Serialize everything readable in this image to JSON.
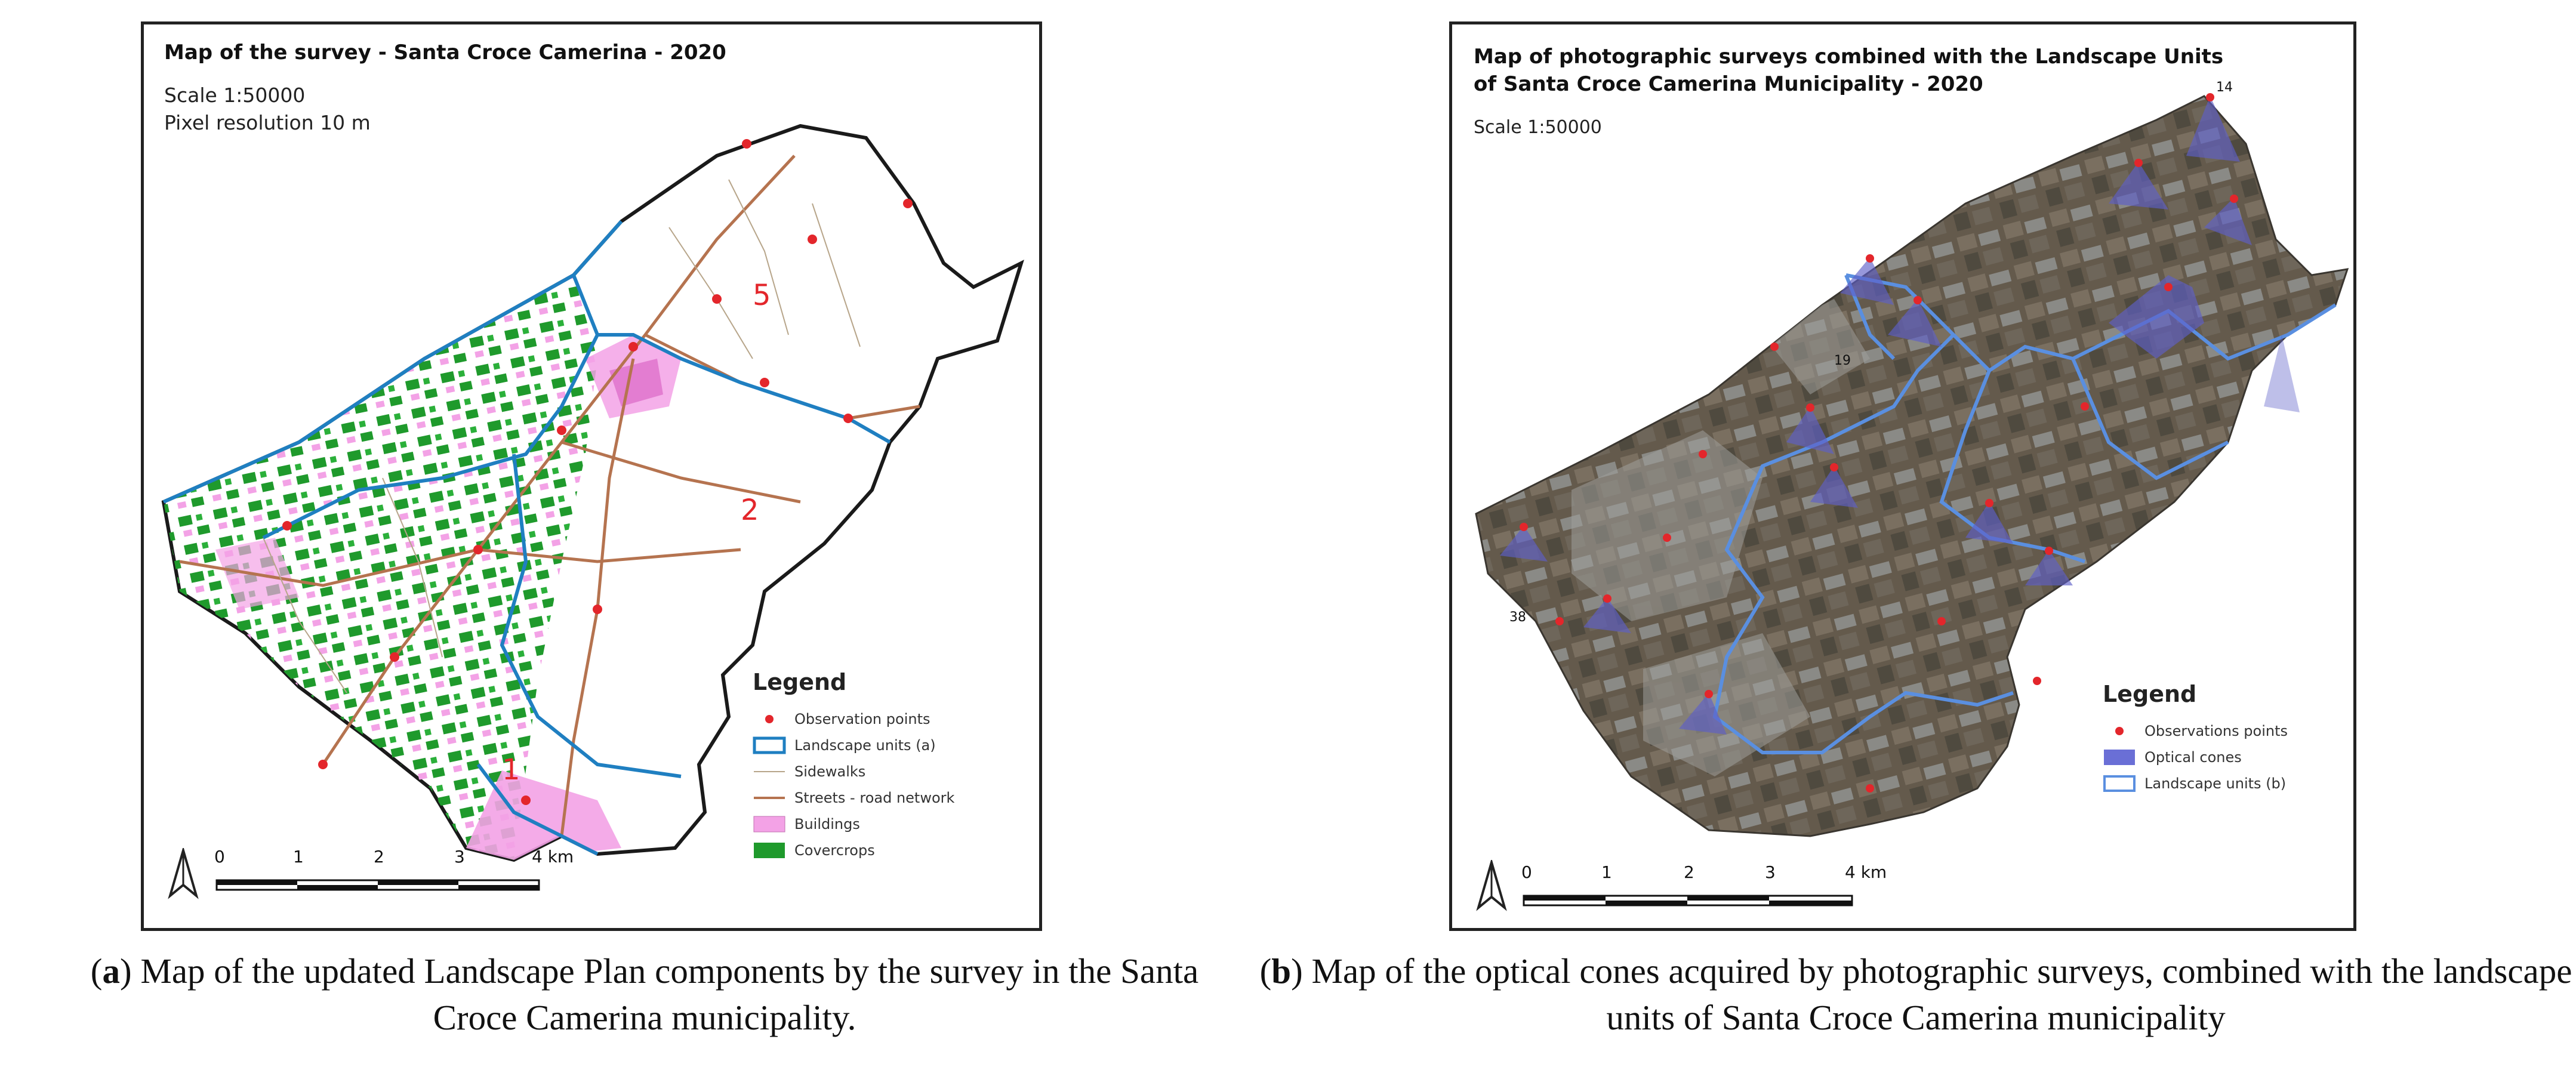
{
  "panel_a": {
    "title": "Map of the survey - Santa Croce Camerina - 2020",
    "scale": "Scale 1:50000",
    "resolution": "Pixel resolution 10 m",
    "unit_labels": [
      "5",
      "2",
      "1"
    ],
    "legend": {
      "title": "Legend",
      "items": [
        {
          "label": "Observation points",
          "symbol": "red-dot",
          "color": "#e3262b"
        },
        {
          "label": "Landscape units (a)",
          "symbol": "blue-outline-box",
          "color": "#1f7fc1"
        },
        {
          "label": "Sidewalks",
          "symbol": "thin-line",
          "color": "#b7a58a"
        },
        {
          "label": "Streets - road network",
          "symbol": "line",
          "color": "#b5734f"
        },
        {
          "label": "Buildings",
          "symbol": "pink-box",
          "color": "#f3a2e6"
        },
        {
          "label": "Covercrops",
          "symbol": "green-box",
          "color": "#1f9a2c"
        }
      ]
    },
    "scalebar_ticks": [
      "0",
      "1",
      "2",
      "3",
      "4 km"
    ]
  },
  "panel_b": {
    "title_line1": "Map of photographic surveys combined with the Landscape Units",
    "title_line2": "of Santa Croce Camerina Municipality - 2020",
    "scale": "Scale 1:50000",
    "legend": {
      "title": "Legend",
      "items": [
        {
          "label": "Observations points",
          "symbol": "red-dot",
          "color": "#e3262b"
        },
        {
          "label": "Optical cones",
          "symbol": "purple-box",
          "color": "#6a6fd6"
        },
        {
          "label": "Landscape units (b)",
          "symbol": "blue-outline-box",
          "color": "#5a8fe0"
        }
      ]
    },
    "scalebar_ticks": [
      "0",
      "1",
      "2",
      "3",
      "4 km"
    ],
    "point_labels": [
      "14",
      "19",
      "38"
    ]
  },
  "captions": {
    "a_letter": "a",
    "a_text": " Map of the updated Landscape Plan components by the survey in the Santa Croce Camerina municipality.",
    "b_letter": "b",
    "b_text": " Map of the optical cones acquired by photographic surveys, combined with the landscape units of Santa Croce Camerina municipality"
  },
  "colors": {
    "frame": "#222222",
    "landscape_unit_a": "#1f7fc1",
    "landscape_unit_b": "#5a8fe0",
    "streets": "#b5734f",
    "buildings": "#f3a2e6",
    "covercrops": "#1f9a2c",
    "observation_points": "#e3262b",
    "optical_cones": "#5d5fc8",
    "satellite_base": "#5f5548"
  }
}
